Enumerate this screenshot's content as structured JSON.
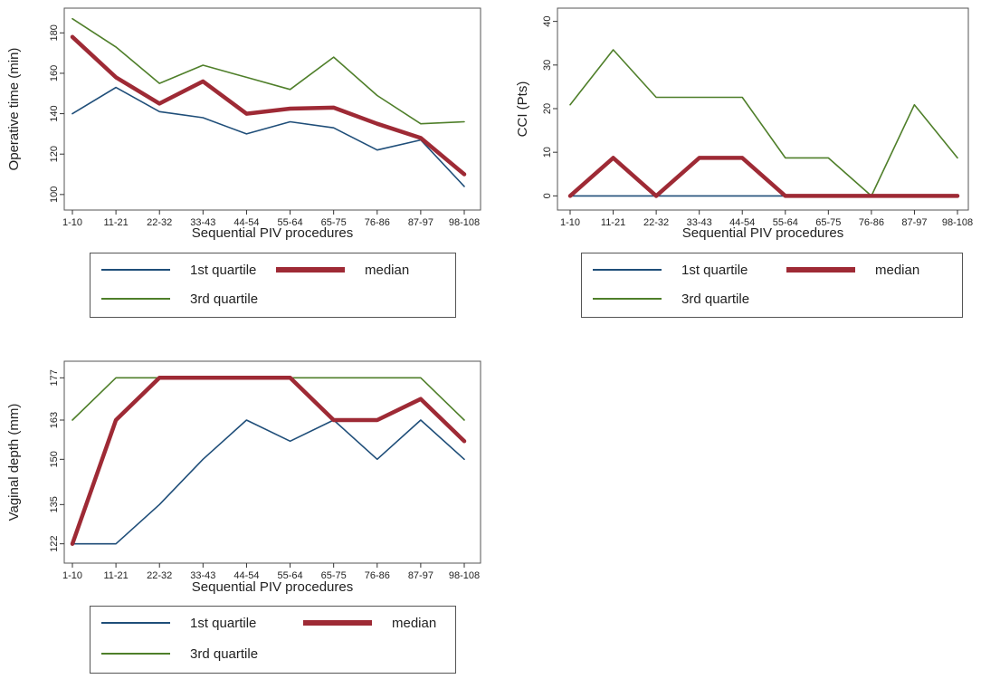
{
  "colors": {
    "q1": "#1f4e79",
    "median": "#9e2a35",
    "q3": "#4f7f2a",
    "frame": "#555555"
  },
  "chart_data": [
    {
      "type": "line",
      "id": "operative-time",
      "xlabel": "Sequential PIV procedures",
      "ylabel": "Operative time (min)",
      "categories": [
        "1-10",
        "11-21",
        "22-32",
        "33-43",
        "44-54",
        "55-64",
        "65-75",
        "76-86",
        "87-97",
        "98-108"
      ],
      "ylim": [
        95,
        190
      ],
      "yticks": [
        100,
        120,
        140,
        160,
        180
      ],
      "series": [
        {
          "name": "1st quartile",
          "values": [
            140,
            153,
            141,
            138,
            130,
            136,
            133,
            122,
            127,
            104
          ]
        },
        {
          "name": "median",
          "values": [
            178,
            158,
            145,
            156,
            140,
            142.5,
            143,
            135,
            128,
            110
          ]
        },
        {
          "name": "3rd quartile",
          "values": [
            187,
            173,
            155,
            164,
            158,
            152,
            168,
            149,
            135,
            136
          ]
        }
      ],
      "legend": [
        "1st quartile",
        "median",
        "3rd quartile"
      ]
    },
    {
      "type": "line",
      "id": "cci",
      "xlabel": "Sequential PIV procedures",
      "ylabel": "CCI (Pts)",
      "categories": [
        "1-10",
        "11-21",
        "22-32",
        "33-43",
        "44-54",
        "55-64",
        "65-75",
        "76-86",
        "87-97",
        "98-108"
      ],
      "ylim": [
        -2,
        42
      ],
      "yticks": [
        0,
        10,
        20,
        30,
        40
      ],
      "series": [
        {
          "name": "1st quartile",
          "values": [
            0,
            0,
            0,
            0,
            0,
            0,
            0,
            0,
            0,
            0
          ]
        },
        {
          "name": "median",
          "values": [
            0,
            8.7,
            0,
            8.7,
            8.7,
            0,
            0,
            0,
            0,
            0
          ]
        },
        {
          "name": "3rd quartile",
          "values": [
            20.9,
            33.5,
            22.6,
            22.6,
            22.6,
            8.7,
            8.7,
            0,
            20.9,
            8.7
          ]
        }
      ],
      "legend": [
        "1st quartile",
        "median",
        "3rd quartile"
      ]
    },
    {
      "type": "line",
      "id": "vaginal-depth",
      "xlabel": "Sequential PIV procedures",
      "ylabel": "Vaginal depth (mm)",
      "categories": [
        "1-10",
        "11-21",
        "22-32",
        "33-43",
        "44-54",
        "55-64",
        "65-75",
        "76-86",
        "87-97",
        "98-108"
      ],
      "ylim": [
        118,
        181
      ],
      "yticks": [
        122,
        135,
        150,
        163,
        177
      ],
      "series": [
        {
          "name": "1st quartile",
          "values": [
            122,
            122,
            135,
            150,
            163,
            156,
            163,
            150,
            163,
            150
          ]
        },
        {
          "name": "median",
          "values": [
            122,
            163,
            177,
            177,
            177,
            177,
            163,
            163,
            170,
            156
          ]
        },
        {
          "name": "3rd quartile",
          "values": [
            163,
            177,
            177,
            177,
            177,
            177,
            177,
            177,
            177,
            163
          ]
        }
      ],
      "legend": [
        "1st quartile",
        "median",
        "3rd quartile"
      ]
    }
  ]
}
